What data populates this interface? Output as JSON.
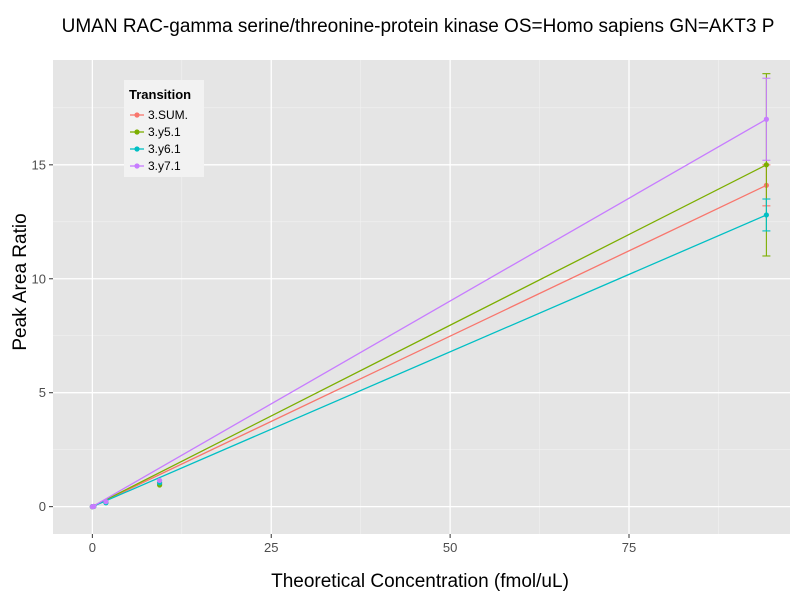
{
  "chart_data": {
    "type": "line",
    "title": "UMAN RAC-gamma serine/threonine-protein kinase OS=Homo sapiens GN=AKT3 P",
    "xlabel": "Theoretical Concentration (fmol/uL)",
    "ylabel": "Peak Area Ratio",
    "xlim": [
      -5.5,
      97.5
    ],
    "ylim": [
      -1.2,
      19.6
    ],
    "x_ticks": [
      0,
      25,
      50,
      75
    ],
    "y_ticks": [
      0,
      5,
      10,
      15
    ],
    "grid": true,
    "legend": {
      "title": "Transition",
      "position": "top-left"
    },
    "series": [
      {
        "name": "3.SUM.",
        "color": "#F8766D",
        "x": [
          0,
          0.2,
          1.9,
          9.4,
          94.2
        ],
        "y": [
          0,
          0.01,
          0.19,
          1.0,
          14.1
        ],
        "fit_end": 14.1,
        "err": [
          null,
          null,
          null,
          null,
          0.9
        ]
      },
      {
        "name": "3.y5.1",
        "color": "#7CAE00",
        "x": [
          0,
          0.2,
          1.9,
          9.4,
          94.2
        ],
        "y": [
          0,
          0.01,
          0.2,
          0.95,
          15.0
        ],
        "fit_end": 15.0,
        "err": [
          null,
          null,
          null,
          null,
          4.0
        ]
      },
      {
        "name": "3.y6.1",
        "color": "#00BFC4",
        "x": [
          0,
          0.2,
          1.9,
          9.4,
          94.2
        ],
        "y": [
          0,
          0.01,
          0.17,
          1.05,
          12.8
        ],
        "fit_end": 12.8,
        "err": [
          null,
          null,
          null,
          null,
          0.7
        ]
      },
      {
        "name": "3.y7.1",
        "color": "#C77CFF",
        "x": [
          0,
          0.2,
          1.9,
          9.4,
          94.2
        ],
        "y": [
          0,
          0.01,
          0.22,
          1.15,
          17.0
        ],
        "fit_end": 17.0,
        "err": [
          null,
          null,
          null,
          null,
          1.8
        ]
      }
    ]
  }
}
